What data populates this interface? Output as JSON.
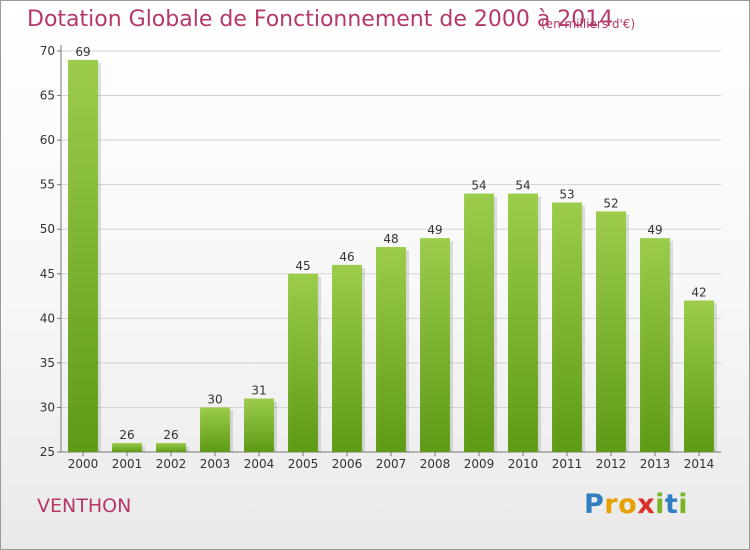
{
  "header": {
    "title": "Dotation Globale de Fonctionnement de 2000 à 2014",
    "unit": "(en milliers d'€)"
  },
  "footer": {
    "commune": "VENTHON",
    "logo_text": "Proxiti",
    "logo_letters": [
      {
        "ch": "P",
        "color": "#2f7fc0"
      },
      {
        "ch": "r",
        "color": "#e8a000"
      },
      {
        "ch": "o",
        "color": "#e8a000"
      },
      {
        "ch": "x",
        "color": "#d9302a"
      },
      {
        "ch": "i",
        "color": "#7ab427"
      },
      {
        "ch": "t",
        "color": "#2f7fc0"
      },
      {
        "ch": "i",
        "color": "#7ab427"
      }
    ]
  },
  "chart_data": {
    "type": "bar",
    "title": "Dotation Globale de Fonctionnement de 2000 à 2014",
    "subtitle": "(en milliers d'€)",
    "xlabel": "",
    "ylabel": "",
    "categories": [
      "2000",
      "2001",
      "2002",
      "2003",
      "2004",
      "2005",
      "2006",
      "2007",
      "2008",
      "2009",
      "2010",
      "2011",
      "2012",
      "2013",
      "2014"
    ],
    "values": [
      69,
      26,
      26,
      30,
      31,
      45,
      46,
      48,
      49,
      54,
      54,
      53,
      52,
      49,
      42
    ],
    "ylim": [
      25,
      70
    ],
    "yticks": [
      25,
      30,
      35,
      40,
      45,
      50,
      55,
      60,
      65,
      70
    ],
    "grid": true,
    "bar_color_top": "#9ccc4c",
    "bar_color_bottom": "#5e9a16"
  }
}
